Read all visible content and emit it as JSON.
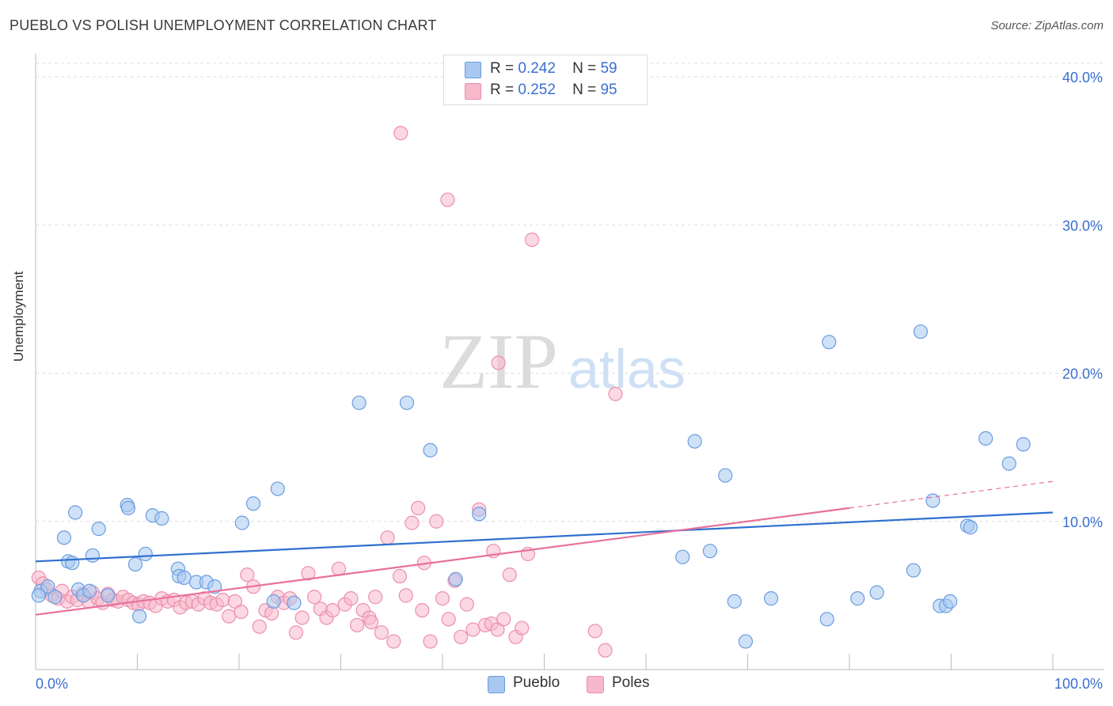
{
  "title": "PUEBLO VS POLISH UNEMPLOYMENT CORRELATION CHART",
  "source": "Source: ZipAtlas.com",
  "watermark": {
    "zip": "ZIP",
    "atlas": "atlas"
  },
  "legend_top": {
    "pueblo": {
      "r_label": "R =",
      "r_value": "0.242",
      "n_label": "N =",
      "n_value": "59"
    },
    "poles": {
      "r_label": "R =",
      "r_value": "0.252",
      "n_label": "N =",
      "n_value": "95"
    }
  },
  "legend_bottom": {
    "pueblo": "Pueblo",
    "poles": "Poles"
  },
  "colors": {
    "pueblo_fill": "#a8c8f0",
    "pueblo_stroke": "#6a9de0",
    "pueblo_line": "#2f6fcf",
    "poles_fill": "#f7b8cb",
    "poles_stroke": "#ec8fae",
    "poles_line": "#e8709a",
    "tick_text": "#3a6fd0",
    "grid": "#dddddd"
  },
  "chart_data": {
    "type": "scatter",
    "title": "PUEBLO VS POLISH UNEMPLOYMENT CORRELATION CHART",
    "xlabel": "",
    "ylabel": "Unemployment",
    "xlim": [
      0,
      100
    ],
    "ylim": [
      0,
      40
    ],
    "x_tick_labels": [
      "0.0%",
      "100.0%"
    ],
    "y_ticks": [
      10,
      20,
      30,
      40
    ],
    "y_tick_labels": [
      "10.0%",
      "20.0%",
      "30.0%",
      "40.0%"
    ],
    "series": [
      {
        "name": "Pueblo",
        "r": 0.242,
        "n": 59,
        "trend": {
          "x0": 0,
          "y0": 7.3,
          "x1": 100,
          "y1": 10.6
        },
        "points": [
          [
            0.5,
            5.3
          ],
          [
            1.2,
            5.6
          ],
          [
            1.9,
            4.9
          ],
          [
            2.8,
            8.9
          ],
          [
            3.2,
            7.3
          ],
          [
            3.6,
            7.2
          ],
          [
            3.9,
            10.6
          ],
          [
            4.2,
            5.4
          ],
          [
            4.7,
            5.0
          ],
          [
            5.3,
            5.3
          ],
          [
            5.6,
            7.7
          ],
          [
            6.2,
            9.5
          ],
          [
            7.1,
            5.0
          ],
          [
            9.8,
            7.1
          ],
          [
            10.2,
            3.6
          ],
          [
            10.8,
            7.8
          ],
          [
            9.0,
            11.1
          ],
          [
            9.1,
            10.9
          ],
          [
            11.5,
            10.4
          ],
          [
            12.4,
            10.2
          ],
          [
            14.0,
            6.8
          ],
          [
            14.1,
            6.3
          ],
          [
            14.6,
            6.2
          ],
          [
            15.8,
            5.9
          ],
          [
            16.8,
            5.9
          ],
          [
            17.6,
            5.6
          ],
          [
            20.3,
            9.9
          ],
          [
            21.4,
            11.2
          ],
          [
            23.4,
            4.6
          ],
          [
            23.8,
            12.2
          ],
          [
            25.4,
            4.5
          ],
          [
            31.8,
            18.0
          ],
          [
            36.5,
            18.0
          ],
          [
            38.8,
            14.8
          ],
          [
            41.3,
            6.1
          ],
          [
            43.6,
            10.5
          ],
          [
            63.6,
            7.6
          ],
          [
            64.8,
            15.4
          ],
          [
            66.3,
            8.0
          ],
          [
            67.8,
            13.1
          ],
          [
            68.7,
            4.6
          ],
          [
            69.8,
            1.9
          ],
          [
            72.3,
            4.8
          ],
          [
            77.8,
            3.4
          ],
          [
            78.0,
            22.1
          ],
          [
            80.8,
            4.8
          ],
          [
            82.7,
            5.2
          ],
          [
            86.3,
            6.7
          ],
          [
            87.0,
            22.8
          ],
          [
            88.2,
            11.4
          ],
          [
            88.9,
            4.3
          ],
          [
            89.5,
            4.3
          ],
          [
            89.9,
            4.6
          ],
          [
            91.6,
            9.7
          ],
          [
            91.9,
            9.6
          ],
          [
            93.4,
            15.6
          ],
          [
            95.7,
            13.9
          ],
          [
            97.1,
            15.2
          ],
          [
            0.3,
            5.0
          ]
        ]
      },
      {
        "name": "Poles",
        "r": 0.252,
        "n": 95,
        "trend": {
          "x0": 0,
          "y0": 3.7,
          "x1": 80,
          "y1": 10.9
        },
        "trend_dashed": {
          "x0": 80,
          "y0": 10.9,
          "x1": 100,
          "y1": 12.7
        },
        "points": [
          [
            0.3,
            6.2
          ],
          [
            0.7,
            5.8
          ],
          [
            1.1,
            5.4
          ],
          [
            1.6,
            5.0
          ],
          [
            2.2,
            4.8
          ],
          [
            2.6,
            5.3
          ],
          [
            3.1,
            4.6
          ],
          [
            3.6,
            4.9
          ],
          [
            4.1,
            4.7
          ],
          [
            4.6,
            5.1
          ],
          [
            5.2,
            4.6
          ],
          [
            5.6,
            5.2
          ],
          [
            6.1,
            4.8
          ],
          [
            6.6,
            4.5
          ],
          [
            7.1,
            5.1
          ],
          [
            7.6,
            4.7
          ],
          [
            8.1,
            4.6
          ],
          [
            8.6,
            4.9
          ],
          [
            9.1,
            4.7
          ],
          [
            9.6,
            4.5
          ],
          [
            10.1,
            4.4
          ],
          [
            10.6,
            4.6
          ],
          [
            11.2,
            4.5
          ],
          [
            11.8,
            4.3
          ],
          [
            12.4,
            4.8
          ],
          [
            13.0,
            4.6
          ],
          [
            13.6,
            4.7
          ],
          [
            14.2,
            4.2
          ],
          [
            14.8,
            4.5
          ],
          [
            15.4,
            4.6
          ],
          [
            16.0,
            4.4
          ],
          [
            16.6,
            4.8
          ],
          [
            17.2,
            4.5
          ],
          [
            17.8,
            4.4
          ],
          [
            18.4,
            4.7
          ],
          [
            19.0,
            3.6
          ],
          [
            19.6,
            4.6
          ],
          [
            20.2,
            3.9
          ],
          [
            20.8,
            6.4
          ],
          [
            21.4,
            5.6
          ],
          [
            22.0,
            2.9
          ],
          [
            22.6,
            4.0
          ],
          [
            23.2,
            3.8
          ],
          [
            23.8,
            4.9
          ],
          [
            24.4,
            4.5
          ],
          [
            25.0,
            4.8
          ],
          [
            25.6,
            2.5
          ],
          [
            26.2,
            3.5
          ],
          [
            26.8,
            6.5
          ],
          [
            27.4,
            4.9
          ],
          [
            28.0,
            4.1
          ],
          [
            28.6,
            3.5
          ],
          [
            29.2,
            4.0
          ],
          [
            29.8,
            6.8
          ],
          [
            30.4,
            4.4
          ],
          [
            31.0,
            4.8
          ],
          [
            31.6,
            3.0
          ],
          [
            32.2,
            4.0
          ],
          [
            32.8,
            3.5
          ],
          [
            33.4,
            4.9
          ],
          [
            34.0,
            2.5
          ],
          [
            34.6,
            8.9
          ],
          [
            35.2,
            1.9
          ],
          [
            35.8,
            6.3
          ],
          [
            36.4,
            5.0
          ],
          [
            37.0,
            9.9
          ],
          [
            37.6,
            10.9
          ],
          [
            38.2,
            7.2
          ],
          [
            38.8,
            1.9
          ],
          [
            39.4,
            10.0
          ],
          [
            40.0,
            4.8
          ],
          [
            40.6,
            3.4
          ],
          [
            41.2,
            6.0
          ],
          [
            41.8,
            2.2
          ],
          [
            42.4,
            4.4
          ],
          [
            43.0,
            2.7
          ],
          [
            43.6,
            10.8
          ],
          [
            44.2,
            3.0
          ],
          [
            44.8,
            3.1
          ],
          [
            45.4,
            2.7
          ],
          [
            46.0,
            3.4
          ],
          [
            46.6,
            6.4
          ],
          [
            47.2,
            2.2
          ],
          [
            47.8,
            2.8
          ],
          [
            48.4,
            7.8
          ],
          [
            55.0,
            2.6
          ],
          [
            56.0,
            1.3
          ],
          [
            57.0,
            18.6
          ],
          [
            45.5,
            20.7
          ],
          [
            35.9,
            36.2
          ],
          [
            40.5,
            31.7
          ],
          [
            48.8,
            29.0
          ],
          [
            45.0,
            8.0
          ],
          [
            38.0,
            4.0
          ],
          [
            33.0,
            3.2
          ]
        ]
      }
    ]
  }
}
